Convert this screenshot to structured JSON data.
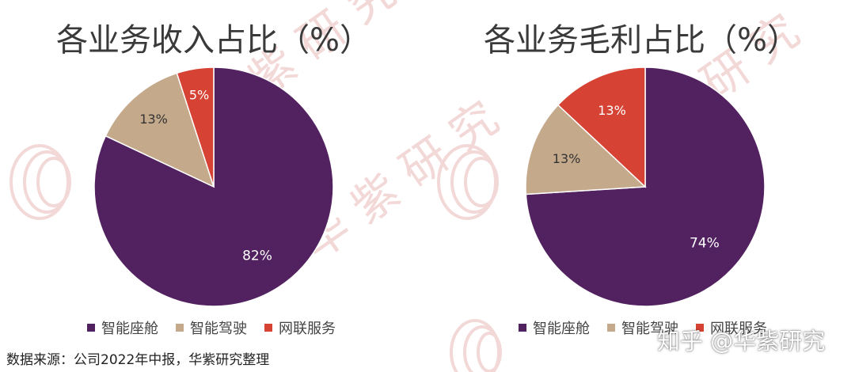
{
  "colors": {
    "cockpit": "#52215f",
    "driving": "#c4a98b",
    "iov": "#d64233",
    "watermark": "#f3d8d8"
  },
  "watermark": {
    "text": "华紫研究"
  },
  "chart_data": [
    {
      "type": "pie",
      "title": "各业务收入占比（%）",
      "series": [
        {
          "name": "智能座舱",
          "value": 82,
          "label": "82%",
          "color": "#52215f"
        },
        {
          "name": "智能驾驶",
          "value": 13,
          "label": "13%",
          "color": "#c4a98b"
        },
        {
          "name": "网联服务",
          "value": 5,
          "label": "5%",
          "color": "#d64233"
        }
      ],
      "legend": {
        "position": "bottom",
        "entries": [
          "智能座舱",
          "智能驾驶",
          "网联服务"
        ]
      }
    },
    {
      "type": "pie",
      "title": "各业务毛利占比（%）",
      "series": [
        {
          "name": "智能座舱",
          "value": 74,
          "label": "74%",
          "color": "#52215f"
        },
        {
          "name": "智能驾驶",
          "value": 13,
          "label": "13%",
          "color": "#c4a98b"
        },
        {
          "name": "网联服务",
          "value": 13,
          "label": "13%",
          "color": "#d64233"
        }
      ],
      "legend": {
        "position": "bottom",
        "entries": [
          "智能座舱",
          "智能驾驶",
          "网联服务"
        ]
      }
    }
  ],
  "source": "数据来源：公司2022年中报，华紫研究整理",
  "overlay": {
    "zhihu_watermark": "知乎 @华紫研究"
  }
}
